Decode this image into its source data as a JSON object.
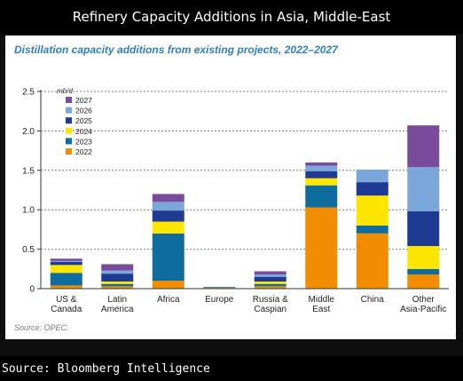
{
  "header": {
    "title": "Refinery Capacity Additions in Asia, Middle-East"
  },
  "footer": {
    "source": "Source: Bloomberg Intelligence"
  },
  "chart_data": {
    "type": "bar",
    "stacked": true,
    "title": "Distillation capacity additions from existing projects, 2022–2027",
    "ylabel": "mb/d",
    "ylim": [
      0,
      2.5
    ],
    "yticks": [
      "0",
      "0.5",
      "1.0",
      "1.5",
      "2.0",
      "2.5"
    ],
    "grid": "dotted-horizontal",
    "legend_position": "top-left",
    "source_note": "Source: OPEC.",
    "categories": [
      [
        "US &",
        "Canada"
      ],
      [
        "Latin",
        "America"
      ],
      [
        "Africa"
      ],
      [
        "Europe"
      ],
      [
        "Russia &",
        "Caspian"
      ],
      [
        "Middle",
        "East"
      ],
      [
        "China"
      ],
      [
        "Other",
        "Asia-Pacific"
      ]
    ],
    "series": [
      {
        "name": "2022",
        "color": "#f28c00",
        "values": [
          0.04,
          0.03,
          0.1,
          0.01,
          0.03,
          1.03,
          0.7,
          0.18
        ]
      },
      {
        "name": "2023",
        "color": "#0f6d9e",
        "values": [
          0.16,
          0.03,
          0.6,
          0.01,
          0.03,
          0.28,
          0.1,
          0.07
        ]
      },
      {
        "name": "2024",
        "color": "#ffe600",
        "values": [
          0.1,
          0.03,
          0.15,
          0.0,
          0.03,
          0.09,
          0.38,
          0.29
        ]
      },
      {
        "name": "2025",
        "color": "#1f3a93",
        "values": [
          0.04,
          0.1,
          0.14,
          0.0,
          0.06,
          0.09,
          0.17,
          0.44
        ]
      },
      {
        "name": "2026",
        "color": "#7aa6da",
        "values": [
          0.01,
          0.04,
          0.11,
          0.0,
          0.03,
          0.07,
          0.16,
          0.56
        ]
      },
      {
        "name": "2027",
        "color": "#7b4b9b",
        "values": [
          0.03,
          0.08,
          0.1,
          0.0,
          0.04,
          0.04,
          0.0,
          0.53
        ]
      }
    ]
  }
}
